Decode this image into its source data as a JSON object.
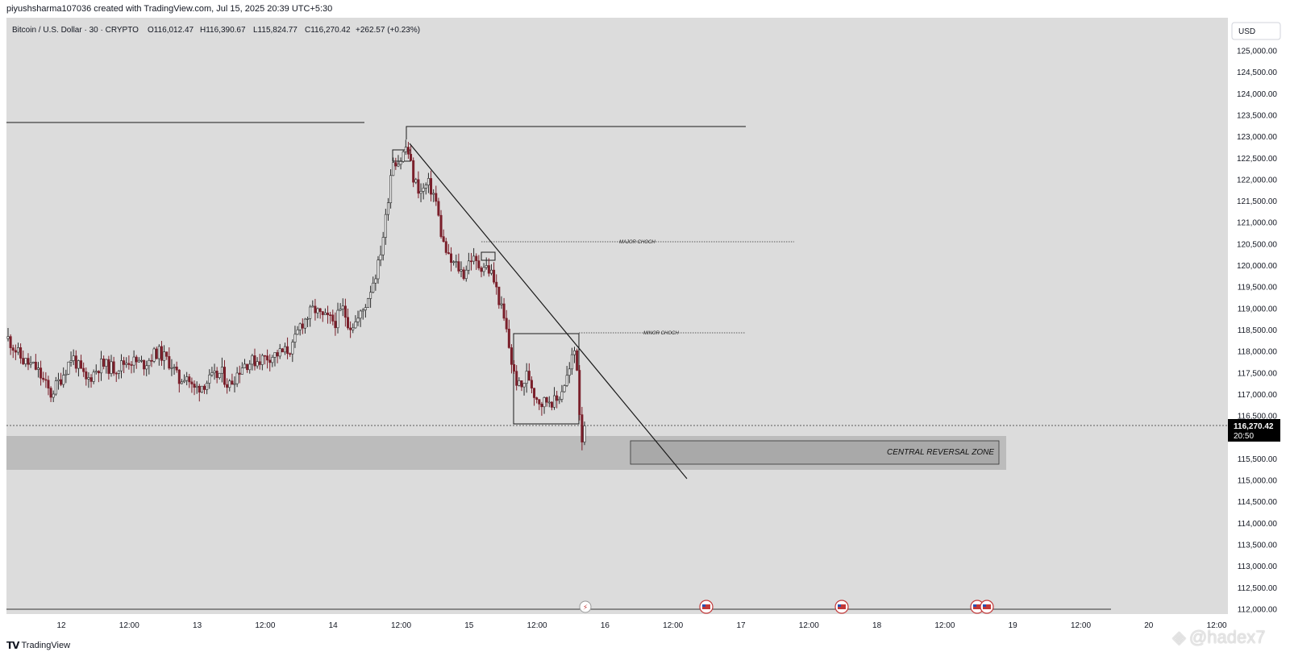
{
  "credit": "piyushsharma107036 created with TradingView.com, Jul 15, 2025 20:39 UTC+5:30",
  "footer": {
    "brand": "TradingView"
  },
  "watermark": "@hadex7",
  "colors": {
    "background": "#dcdcdc",
    "up": "#2a2a2a",
    "down": "#7a1f2a",
    "zone": "#bcbcbc",
    "zone_box": "#a9a9a9",
    "line": "#1a1a1a",
    "badge": "#000000"
  },
  "legend": {
    "symbol": "Bitcoin / U.S. Dollar · 30 · CRYPTO",
    "open": "O116,012.47",
    "high": "H116,390.67",
    "low": "L115,824.77",
    "close": "C116,270.42",
    "change": "+262.57 (+0.23%)"
  },
  "currency_button": "USD",
  "price_badge": {
    "price": "116,270.42",
    "countdown": "20:50"
  },
  "annotations": {
    "major_choch": "MAJOR CHOCH",
    "minor_choch": "MINOR CHOCH",
    "zone_label": "CENTRAL REVERSAL ZONE"
  },
  "chart_data": {
    "type": "candlestick",
    "title": "Bitcoin / U.S. Dollar · 30 · CRYPTO",
    "timeframe": "30m",
    "currency": "USD",
    "ylim": [
      112000,
      125000
    ],
    "y_ticks": [
      "125,000.00",
      "124,500.00",
      "124,000.00",
      "123,500.00",
      "123,000.00",
      "122,500.00",
      "122,000.00",
      "121,500.00",
      "121,000.00",
      "120,500.00",
      "120,000.00",
      "119,500.00",
      "119,000.00",
      "118,500.00",
      "118,000.00",
      "117,500.00",
      "117,000.00",
      "116,500.00",
      "116,000.00",
      "115,500.00",
      "115,000.00",
      "114,500.00",
      "114,000.00",
      "113,500.00",
      "113,000.00",
      "112,500.00",
      "112,000.00"
    ],
    "x_ticks": [
      "12",
      "12:00",
      "13",
      "12:00",
      "14",
      "12:00",
      "15",
      "12:00",
      "16",
      "12:00",
      "17",
      "12:00",
      "18",
      "12:00",
      "19",
      "12:00",
      "20",
      "12:00"
    ],
    "price_path": [
      [
        0,
        118300
      ],
      [
        4,
        117800
      ],
      [
        8,
        117600
      ],
      [
        12,
        117000
      ],
      [
        15,
        117400
      ],
      [
        18,
        117900
      ],
      [
        22,
        117300
      ],
      [
        26,
        117700
      ],
      [
        30,
        117600
      ],
      [
        34,
        117800
      ],
      [
        38,
        117700
      ],
      [
        42,
        118000
      ],
      [
        46,
        117700
      ],
      [
        48,
        117300
      ],
      [
        50,
        117500
      ],
      [
        52,
        117100
      ],
      [
        56,
        117300
      ],
      [
        60,
        117500
      ],
      [
        62,
        117200
      ],
      [
        66,
        117700
      ],
      [
        70,
        117800
      ],
      [
        74,
        117900
      ],
      [
        78,
        118000
      ],
      [
        80,
        118100
      ],
      [
        82,
        118600
      ],
      [
        86,
        119000
      ],
      [
        88,
        118800
      ],
      [
        92,
        118700
      ],
      [
        94,
        119000
      ],
      [
        96,
        118600
      ],
      [
        98,
        118700
      ],
      [
        100,
        119000
      ],
      [
        102,
        119500
      ],
      [
        104,
        120000
      ],
      [
        106,
        121000
      ],
      [
        108,
        122500
      ],
      [
        110,
        122400
      ],
      [
        112,
        122800
      ],
      [
        114,
        122000
      ],
      [
        116,
        121700
      ],
      [
        118,
        121900
      ],
      [
        120,
        121600
      ],
      [
        122,
        120600
      ],
      [
        124,
        120100
      ],
      [
        126,
        120000
      ],
      [
        128,
        119800
      ],
      [
        130,
        120200
      ],
      [
        132,
        120000
      ],
      [
        134,
        120000
      ],
      [
        136,
        119800
      ],
      [
        138,
        119200
      ],
      [
        140,
        118500
      ],
      [
        142,
        117500
      ],
      [
        144,
        117100
      ],
      [
        146,
        117500
      ],
      [
        148,
        117000
      ],
      [
        150,
        116800
      ],
      [
        152,
        116900
      ],
      [
        154,
        116800
      ],
      [
        156,
        117200
      ],
      [
        158,
        117600
      ],
      [
        159,
        118100
      ],
      [
        160,
        117600
      ],
      [
        161,
        115900
      ],
      [
        162,
        116270
      ]
    ],
    "drawings": {
      "horizontal_levels": [
        {
          "price": 123300,
          "from": "Jul 11 ~12:00",
          "to": "Jul 14 ~15:00"
        },
        {
          "price": 123200,
          "from": "Jul 14 ~12:00",
          "to": "Jul 17 ~00:00"
        },
        {
          "price": 120520,
          "label": "MAJOR CHOCH",
          "style": "dotted"
        },
        {
          "price": 118400,
          "label": "MINOR CHOCH",
          "style": "dotted"
        },
        {
          "price": 116270,
          "label": "current price",
          "style": "dotted"
        }
      ],
      "trendline": {
        "from": [
          122900,
          "Jul 14 12:00"
        ],
        "to": [
          115000,
          "Jul 16 ~14:00"
        ]
      },
      "zone": {
        "label": "CENTRAL REVERSAL ZONE",
        "from_price": 116000,
        "to_price": 115250
      }
    }
  }
}
